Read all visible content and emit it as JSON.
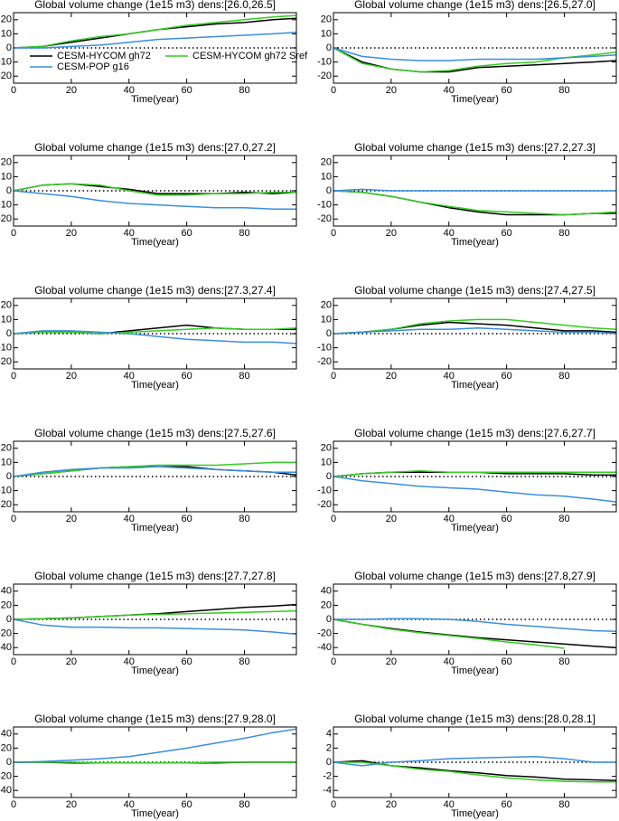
{
  "chart_data": [
    {
      "type": "line",
      "title": "Global volume change (1e15 m3)  dens:[26.0,26.5]",
      "xlabel": "Time(year)",
      "x": [
        0,
        10,
        20,
        30,
        40,
        50,
        60,
        70,
        80,
        90,
        98
      ],
      "xlim": [
        0,
        98
      ],
      "xticks": [
        0,
        20,
        40,
        60,
        80
      ],
      "ylim": [
        -25,
        25
      ],
      "yticks": [
        -20,
        -10,
        0,
        10,
        20
      ],
      "legend": "lower left",
      "series": [
        {
          "name": "CESM-HYCOM gh72",
          "color": "#000000",
          "values": [
            0,
            1,
            4,
            7,
            10,
            13,
            15,
            17,
            18,
            20,
            21
          ]
        },
        {
          "name": "CESM-HYCOM gh72 Sref",
          "color": "#33cc22",
          "values": [
            0,
            1,
            5,
            8,
            10,
            13,
            16,
            18,
            20,
            22,
            23
          ]
        },
        {
          "name": "CESM-POP g16",
          "color": "#3a8ee0",
          "values": [
            0,
            0,
            1,
            2,
            4,
            6,
            7,
            8,
            9,
            10,
            11
          ]
        }
      ]
    },
    {
      "type": "line",
      "title": "Global volume change (1e15 m3)  dens:[26.5,27.0]",
      "xlabel": "Time(year)",
      "x": [
        0,
        10,
        20,
        30,
        40,
        50,
        60,
        70,
        80,
        90,
        98
      ],
      "xlim": [
        0,
        98
      ],
      "xticks": [
        0,
        20,
        40,
        60,
        80
      ],
      "ylim": [
        -25,
        25
      ],
      "yticks": [
        -20,
        -10,
        0,
        10,
        20
      ],
      "series": [
        {
          "color": "#000000",
          "values": [
            0,
            -10,
            -15,
            -17,
            -17,
            -14,
            -13,
            -12,
            -11,
            -10,
            -9
          ]
        },
        {
          "color": "#33cc22",
          "values": [
            0,
            -11,
            -15,
            -17,
            -16,
            -13,
            -11,
            -10,
            -7,
            -5,
            -3
          ]
        },
        {
          "color": "#3a8ee0",
          "values": [
            0,
            -6,
            -8,
            -9,
            -9,
            -8,
            -8,
            -8,
            -7,
            -6,
            -5
          ]
        }
      ]
    },
    {
      "type": "line",
      "title": "Global volume change (1e15 m3)  dens:[27.0,27.2]",
      "xlabel": "Time(year)",
      "x": [
        0,
        10,
        20,
        30,
        40,
        50,
        60,
        70,
        80,
        90,
        98
      ],
      "xlim": [
        0,
        98
      ],
      "xticks": [
        0,
        20,
        40,
        60,
        80
      ],
      "ylim": [
        -25,
        25
      ],
      "yticks": [
        -20,
        -10,
        0,
        10,
        20
      ],
      "series": [
        {
          "color": "#000000",
          "values": [
            0,
            4,
            5,
            3,
            1,
            -2,
            -2,
            -2,
            -1,
            -2,
            -1
          ]
        },
        {
          "color": "#33cc22",
          "values": [
            0,
            4,
            5,
            4,
            0,
            -3,
            -3,
            -2,
            -2,
            -1,
            -1
          ]
        },
        {
          "color": "#3a8ee0",
          "values": [
            0,
            -2,
            -4,
            -7,
            -9,
            -10,
            -11,
            -12,
            -12,
            -13,
            -13
          ]
        }
      ]
    },
    {
      "type": "line",
      "title": "Global volume change (1e15 m3)  dens:[27.2,27.3]",
      "xlabel": "Time(year)",
      "x": [
        0,
        10,
        20,
        30,
        40,
        50,
        60,
        70,
        80,
        90,
        98
      ],
      "xlim": [
        0,
        98
      ],
      "xticks": [
        0,
        20,
        40,
        60,
        80
      ],
      "ylim": [
        -25,
        25
      ],
      "yticks": [
        -20,
        -10,
        0,
        10,
        20
      ],
      "series": [
        {
          "color": "#000000",
          "values": [
            0,
            -1,
            -4,
            -8,
            -12,
            -15,
            -17,
            -17,
            -17,
            -16,
            -16
          ]
        },
        {
          "color": "#33cc22",
          "values": [
            0,
            -1,
            -4,
            -8,
            -11,
            -14,
            -15,
            -16,
            -17,
            -16,
            -15
          ]
        },
        {
          "color": "#3a8ee0",
          "values": [
            0,
            1,
            0,
            0,
            0,
            0,
            0,
            0,
            0,
            0,
            0
          ]
        }
      ]
    },
    {
      "type": "line",
      "title": "Global volume change (1e15 m3)  dens:[27.3,27.4]",
      "xlabel": "Time(year)",
      "x": [
        0,
        10,
        20,
        30,
        40,
        50,
        60,
        70,
        80,
        90,
        98
      ],
      "xlim": [
        0,
        98
      ],
      "xticks": [
        0,
        20,
        40,
        60,
        80
      ],
      "ylim": [
        -25,
        25
      ],
      "yticks": [
        -20,
        -10,
        0,
        10,
        20
      ],
      "series": [
        {
          "color": "#000000",
          "values": [
            0,
            1,
            1,
            0,
            2,
            4,
            6,
            4,
            3,
            3,
            3
          ]
        },
        {
          "color": "#33cc22",
          "values": [
            0,
            1,
            1,
            0,
            1,
            2,
            3,
            4,
            3,
            3,
            4
          ]
        },
        {
          "color": "#3a8ee0",
          "values": [
            0,
            2,
            2,
            1,
            0,
            -2,
            -4,
            -5,
            -6,
            -6,
            -7
          ]
        }
      ]
    },
    {
      "type": "line",
      "title": "Global volume change (1e15 m3)  dens:[27.4,27.5]",
      "xlabel": "Time(year)",
      "x": [
        0,
        10,
        20,
        30,
        40,
        50,
        60,
        70,
        80,
        90,
        98
      ],
      "xlim": [
        0,
        98
      ],
      "xticks": [
        0,
        20,
        40,
        60,
        80
      ],
      "ylim": [
        -25,
        25
      ],
      "yticks": [
        -20,
        -10,
        0,
        10,
        20
      ],
      "series": [
        {
          "color": "#000000",
          "values": [
            0,
            1,
            3,
            6,
            8,
            7,
            6,
            4,
            2,
            2,
            1
          ]
        },
        {
          "color": "#33cc22",
          "values": [
            0,
            1,
            3,
            7,
            9,
            10,
            10,
            8,
            6,
            4,
            3
          ]
        },
        {
          "color": "#3a8ee0",
          "values": [
            0,
            1,
            2,
            3,
            3,
            4,
            3,
            2,
            1,
            1,
            0
          ]
        }
      ]
    },
    {
      "type": "line",
      "title": "Global volume change (1e15 m3)  dens:[27.5,27.6]",
      "xlabel": "Time(year)",
      "x": [
        0,
        10,
        20,
        30,
        40,
        50,
        60,
        70,
        80,
        90,
        98
      ],
      "xlim": [
        0,
        98
      ],
      "xticks": [
        0,
        20,
        40,
        60,
        80
      ],
      "ylim": [
        -25,
        25
      ],
      "yticks": [
        -20,
        -10,
        0,
        10,
        20
      ],
      "series": [
        {
          "color": "#000000",
          "values": [
            0,
            2,
            4,
            6,
            7,
            7,
            7,
            5,
            4,
            3,
            1
          ]
        },
        {
          "color": "#33cc22",
          "values": [
            0,
            2,
            4,
            6,
            7,
            8,
            8,
            8,
            9,
            10,
            10
          ]
        },
        {
          "color": "#3a8ee0",
          "values": [
            0,
            3,
            5,
            6,
            6,
            7,
            6,
            5,
            4,
            3,
            3
          ]
        }
      ]
    },
    {
      "type": "line",
      "title": "Global volume change (1e15 m3)  dens:[27.6,27.7]",
      "xlabel": "Time(year)",
      "x": [
        0,
        10,
        20,
        30,
        40,
        50,
        60,
        70,
        80,
        90,
        98
      ],
      "xlim": [
        0,
        98
      ],
      "xticks": [
        0,
        20,
        40,
        60,
        80
      ],
      "ylim": [
        -25,
        25
      ],
      "yticks": [
        -20,
        -10,
        0,
        10,
        20
      ],
      "series": [
        {
          "color": "#000000",
          "values": [
            0,
            2,
            3,
            3,
            3,
            3,
            2,
            2,
            2,
            1,
            1
          ]
        },
        {
          "color": "#33cc22",
          "values": [
            0,
            2,
            3,
            4,
            3,
            3,
            3,
            3,
            3,
            3,
            3
          ]
        },
        {
          "color": "#3a8ee0",
          "values": [
            0,
            -3,
            -5,
            -7,
            -8,
            -9,
            -11,
            -13,
            -14,
            -16,
            -18
          ]
        }
      ]
    },
    {
      "type": "line",
      "title": "Global volume change (1e15 m3)  dens:[27.7,27.8]",
      "xlabel": "Time(year)",
      "x": [
        0,
        10,
        20,
        30,
        40,
        50,
        60,
        70,
        80,
        90,
        98
      ],
      "xlim": [
        0,
        98
      ],
      "xticks": [
        0,
        20,
        40,
        60,
        80
      ],
      "ylim": [
        -50,
        50
      ],
      "yticks": [
        -40,
        -20,
        0,
        20,
        40
      ],
      "series": [
        {
          "color": "#000000",
          "values": [
            0,
            1,
            2,
            4,
            6,
            8,
            11,
            14,
            17,
            19,
            21
          ]
        },
        {
          "color": "#33cc22",
          "values": [
            0,
            1,
            2,
            4,
            6,
            7,
            8,
            9,
            10,
            11,
            12
          ]
        },
        {
          "color": "#3a8ee0",
          "values": [
            0,
            -8,
            -11,
            -11,
            -12,
            -12,
            -13,
            -14,
            -15,
            -18,
            -21
          ]
        }
      ]
    },
    {
      "type": "line",
      "title": "Global volume change (1e15 m3)  dens:[27.8,27.9]",
      "xlabel": "Time(year)",
      "x": [
        0,
        10,
        20,
        30,
        40,
        50,
        60,
        70,
        80,
        90,
        98
      ],
      "xlim": [
        0,
        98
      ],
      "xticks": [
        0,
        20,
        40,
        60,
        80
      ],
      "ylim": [
        -50,
        50
      ],
      "yticks": [
        -40,
        -20,
        0,
        20,
        40
      ],
      "series": [
        {
          "color": "#000000",
          "values": [
            0,
            -7,
            -13,
            -18,
            -22,
            -26,
            -29,
            -32,
            -35,
            -38,
            -40
          ]
        },
        {
          "color": "#33cc22",
          "values": [
            0,
            -7,
            -14,
            -19,
            -23,
            -27,
            -32,
            -36,
            -41,
            null,
            null
          ]
        },
        {
          "color": "#3a8ee0",
          "values": [
            0,
            0,
            1,
            1,
            0,
            -3,
            -7,
            -10,
            -13,
            -16,
            -17
          ]
        }
      ]
    },
    {
      "type": "line",
      "title": "Global volume change (1e15 m3)  dens:[27.9,28.0]",
      "xlabel": "Time(year)",
      "x": [
        0,
        10,
        20,
        30,
        40,
        50,
        60,
        70,
        80,
        90,
        98
      ],
      "xlim": [
        0,
        98
      ],
      "xticks": [
        0,
        20,
        40,
        60,
        80
      ],
      "ylim": [
        -50,
        50
      ],
      "yticks": [
        -40,
        -20,
        0,
        20,
        40
      ],
      "series": [
        {
          "color": "#000000",
          "values": [
            0,
            0,
            -1,
            -1,
            -1,
            -1,
            -1,
            -1,
            0,
            0,
            0
          ]
        },
        {
          "color": "#33cc22",
          "values": [
            0,
            0,
            0,
            -1,
            -1,
            -1,
            -1,
            0,
            0,
            0,
            0
          ]
        },
        {
          "color": "#3a8ee0",
          "values": [
            0,
            1,
            3,
            5,
            8,
            14,
            20,
            27,
            34,
            42,
            47
          ]
        }
      ]
    },
    {
      "type": "line",
      "title": "Global volume change (1e15 m3)  dens:[28.0,28.1]",
      "xlabel": "Time(year)",
      "x": [
        0,
        10,
        20,
        30,
        40,
        50,
        60,
        70,
        80,
        90,
        98
      ],
      "xlim": [
        0,
        98
      ],
      "xticks": [
        0,
        20,
        40,
        60,
        80
      ],
      "ylim": [
        -5,
        5
      ],
      "yticks": [
        -4,
        -2,
        0,
        2,
        4
      ],
      "series": [
        {
          "color": "#000000",
          "values": [
            0,
            0.2,
            -0.5,
            -0.8,
            -1.2,
            -1.5,
            -1.9,
            -2.1,
            -2.4,
            -2.5,
            -2.6
          ]
        },
        {
          "color": "#33cc22",
          "values": [
            0,
            0,
            -0.5,
            -1,
            -1.3,
            -1.8,
            -2.2,
            -2.5,
            -2.7,
            -2.8,
            -2.8
          ]
        },
        {
          "color": "#3a8ee0",
          "values": [
            0,
            -0.5,
            0,
            0.2,
            0.5,
            0.6,
            0.7,
            0.8,
            0.5,
            0,
            0
          ]
        }
      ]
    }
  ]
}
